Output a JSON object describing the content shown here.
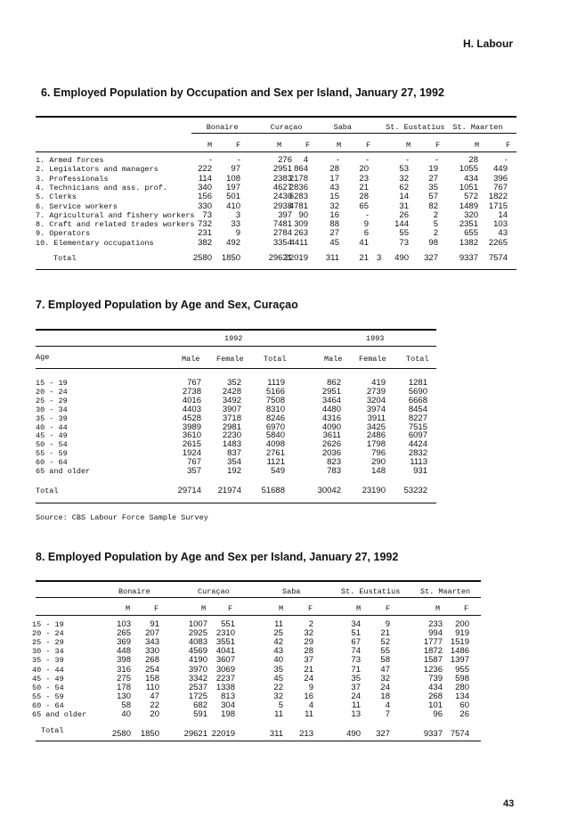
{
  "section_header": "H. Labour",
  "page_number": "43",
  "table6": {
    "title": "6. Employed Population by Occupation and Sex per Island, January 27, 1992",
    "islands": [
      "Bonaire",
      "Curaçao",
      "Saba",
      "St. Eustatius",
      "St. Maarten"
    ],
    "sex_labels": [
      "M",
      "F"
    ],
    "rows": [
      {
        "label": "1. Armed forces",
        "values": [
          "-",
          "-",
          "276",
          "4",
          "-",
          "-",
          "-",
          "-",
          "28",
          "-"
        ]
      },
      {
        "label": "2. Legislators and managers",
        "values": [
          "222",
          "97",
          "2951",
          "864",
          "28",
          "20",
          "53",
          "19",
          "1055",
          "449"
        ]
      },
      {
        "label": "3. Professionals",
        "values": [
          "114",
          "108",
          "2383",
          "2178",
          "17",
          "23",
          "32",
          "27",
          "434",
          "396"
        ]
      },
      {
        "label": "4. Technicians and ass. prof.",
        "values": [
          "340",
          "197",
          "4627",
          "2836",
          "43",
          "21",
          "62",
          "35",
          "1051",
          "767"
        ]
      },
      {
        "label": "5. Clerks",
        "values": [
          "156",
          "501",
          "2430",
          "6283",
          "15",
          "28",
          "14",
          "57",
          "572",
          "1822"
        ]
      },
      {
        "label": "6. Service workers",
        "values": [
          "330",
          "410",
          "2938",
          "4781",
          "32",
          "65",
          "31",
          "82",
          "1489",
          "1715"
        ]
      },
      {
        "label": "7. Agricultural and fishery workers",
        "values": [
          "73",
          "3",
          "397",
          "90",
          "16",
          "-",
          "26",
          "2",
          "320",
          "14"
        ]
      },
      {
        "label": "8. Craft and related trades workers",
        "values": [
          "732",
          "33",
          "7481",
          "309",
          "88",
          "9",
          "144",
          "5",
          "2351",
          "103"
        ]
      },
      {
        "label": "9. Operators",
        "values": [
          "231",
          "9",
          "2784",
          "263",
          "27",
          "6",
          "55",
          "2",
          "655",
          "43"
        ]
      },
      {
        "label": "10. Elementary occupations",
        "values": [
          "382",
          "492",
          "3354",
          "4411",
          "45",
          "41",
          "73",
          "98",
          "1382",
          "2265"
        ]
      }
    ],
    "total": {
      "label": "Total",
      "values": [
        "2580",
        "1850",
        "29621",
        "22019",
        "311",
        "21",
        "490",
        "327",
        "9337",
        "7574"
      ],
      "extra": "3"
    }
  },
  "table7": {
    "title": "7. Employed Population by Age and Sex, Curaçao",
    "years": [
      "1992",
      "1993"
    ],
    "age_header": "Age",
    "cols": [
      "Male",
      "Female",
      "Total",
      "Male",
      "Female",
      "Total"
    ],
    "rows": [
      {
        "label": "15 - 19",
        "values": [
          "767",
          "352",
          "1119",
          "862",
          "419",
          "1281"
        ]
      },
      {
        "label": "20 - 24",
        "values": [
          "2738",
          "2428",
          "5166",
          "2951",
          "2739",
          "5690"
        ]
      },
      {
        "label": "25 - 29",
        "values": [
          "4016",
          "3492",
          "7508",
          "3464",
          "3204",
          "6668"
        ]
      },
      {
        "label": "30 - 34",
        "values": [
          "4403",
          "3907",
          "8310",
          "4480",
          "3974",
          "8454"
        ]
      },
      {
        "label": "35 - 39",
        "values": [
          "4528",
          "3718",
          "8246",
          "4316",
          "3911",
          "8227"
        ]
      },
      {
        "label": "40 - 44",
        "values": [
          "3989",
          "2981",
          "6970",
          "4090",
          "3425",
          "7515"
        ]
      },
      {
        "label": "45 - 49",
        "values": [
          "3610",
          "2230",
          "5840",
          "3611",
          "2486",
          "6097"
        ]
      },
      {
        "label": "50 - 54",
        "values": [
          "2615",
          "1483",
          "4098",
          "2626",
          "1798",
          "4424"
        ]
      },
      {
        "label": "55 - 59",
        "values": [
          "1924",
          "837",
          "2761",
          "2036",
          "796",
          "2832"
        ]
      },
      {
        "label": "60 - 64",
        "values": [
          "767",
          "354",
          "1121",
          "823",
          "290",
          "1113"
        ]
      },
      {
        "label": "65 and older",
        "values": [
          "357",
          "192",
          "549",
          "783",
          "148",
          "931"
        ]
      }
    ],
    "total": {
      "label": "Total",
      "values": [
        "29714",
        "21974",
        "51688",
        "30042",
        "23190",
        "53232"
      ]
    },
    "source": "Source: CBS Labour Force Sample Survey"
  },
  "table8": {
    "title": "8. Employed Population by Age and Sex per Island, January 27, 1992",
    "islands": [
      "Bonaire",
      "Curaçao",
      "Saba",
      "St. Eustatius",
      "St. Maarten"
    ],
    "sex_labels": [
      "M",
      "F"
    ],
    "rows": [
      {
        "label": "15 - 19",
        "values": [
          "103",
          "91",
          "1007",
          "551",
          "11",
          "2",
          "34",
          "9",
          "233",
          "200"
        ]
      },
      {
        "label": "20 - 24",
        "values": [
          "265",
          "207",
          "2925",
          "2310",
          "25",
          "32",
          "51",
          "21",
          "994",
          "919"
        ]
      },
      {
        "label": "25 - 29",
        "values": [
          "369",
          "343",
          "4083",
          "3551",
          "42",
          "29",
          "67",
          "52",
          "1777",
          "1519"
        ]
      },
      {
        "label": "30 - 34",
        "values": [
          "448",
          "330",
          "4569",
          "4041",
          "43",
          "28",
          "74",
          "55",
          "1872",
          "1486"
        ]
      },
      {
        "label": "35 - 39",
        "values": [
          "398",
          "268",
          "4190",
          "3607",
          "40",
          "37",
          "73",
          "58",
          "1587",
          "1397"
        ]
      },
      {
        "label": "40 - 44",
        "values": [
          "316",
          "254",
          "3970",
          "3069",
          "35",
          "21",
          "71",
          "47",
          "1236",
          "955"
        ]
      },
      {
        "label": "45 - 49",
        "values": [
          "275",
          "158",
          "3342",
          "2237",
          "45",
          "24",
          "35",
          "32",
          "739",
          "598"
        ]
      },
      {
        "label": "50 - 54",
        "values": [
          "178",
          "110",
          "2537",
          "1338",
          "22",
          "9",
          "37",
          "24",
          "434",
          "280"
        ]
      },
      {
        "label": "55 - 59",
        "values": [
          "130",
          "47",
          "1725",
          "813",
          "32",
          "16",
          "24",
          "18",
          "268",
          "134"
        ]
      },
      {
        "label": "60 - 64",
        "values": [
          "58",
          "22",
          "682",
          "304",
          "5",
          "4",
          "11",
          "4",
          "101",
          "60"
        ]
      },
      {
        "label": "65 and older",
        "values": [
          "40",
          "20",
          "591",
          "198",
          "11",
          "11",
          "13",
          "7",
          "96",
          "26"
        ]
      }
    ],
    "total": {
      "label": "Total",
      "values": [
        "2580",
        "1850",
        "29621",
        "22019",
        "311",
        "213",
        "490",
        "327",
        "9337",
        "7574"
      ]
    }
  }
}
